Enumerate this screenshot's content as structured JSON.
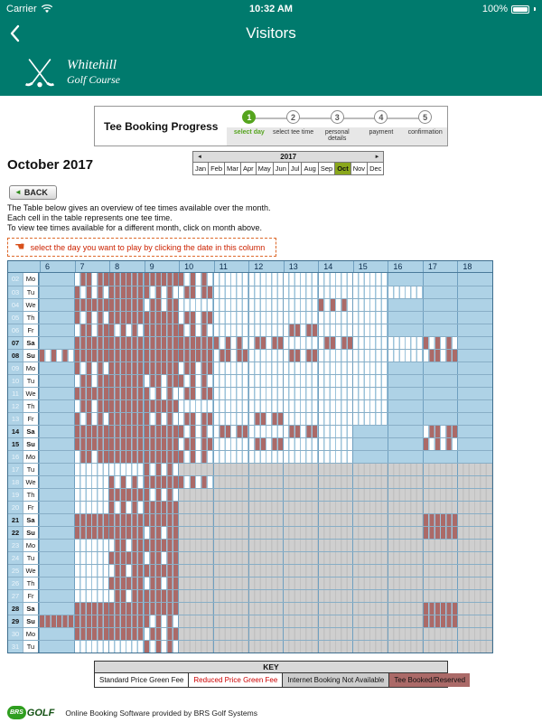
{
  "status_bar": {
    "carrier": "Carrier",
    "time": "10:32 AM",
    "battery": "100%"
  },
  "nav": {
    "title": "Visitors"
  },
  "brand": {
    "line1": "Whitehill",
    "line2": "Golf Course"
  },
  "progress": {
    "title": "Tee Booking Progress",
    "steps": [
      {
        "num": "1",
        "label": "select day",
        "active": true
      },
      {
        "num": "2",
        "label": "select tee time",
        "active": false
      },
      {
        "num": "3",
        "label": "personal details",
        "active": false
      },
      {
        "num": "4",
        "label": "payment",
        "active": false
      },
      {
        "num": "5",
        "label": "confirmation",
        "active": false
      }
    ]
  },
  "month_title": "October 2017",
  "month_selector": {
    "year": "2017",
    "selected": "Oct",
    "months": [
      "Jan",
      "Feb",
      "Mar",
      "Apr",
      "May",
      "Jun",
      "Jul",
      "Aug",
      "Sep",
      "Oct",
      "Nov",
      "Dec"
    ]
  },
  "back_button": {
    "label": "BACK"
  },
  "intro_lines": [
    "The Table below gives an overview of tee times available over the month.",
    "Each cell in the table represents one tee time.",
    "To view tee times available for a different month, click on month above."
  ],
  "hint": {
    "icon": "pointing-left-hand",
    "text": "select the day you want to play by clicking the date in this column"
  },
  "icons": {
    "pointing_hand": "☚",
    "back_triangle": "◄",
    "prev_arrow": "◄",
    "next_arrow": "►"
  },
  "grid": {
    "hours": [
      "6",
      "7",
      "8",
      "9",
      "10",
      "11",
      "12",
      "13",
      "14",
      "15",
      "16",
      "17",
      "18"
    ],
    "slots_per_hour": 6,
    "cell_states": {
      "n": "no tee times",
      "a": "available",
      "b": "booked",
      "m": "partially booked",
      "g": "internet booking not available"
    },
    "days": [
      {
        "date": "02",
        "dow": "Mo",
        "weekend": false,
        "pattern": "nmbbmaaaaannn"
      },
      {
        "date": "03",
        "dow": "Tu",
        "weekend": false,
        "pattern": "nmbmmaaaaaann"
      },
      {
        "date": "04",
        "dow": "We",
        "weekend": false,
        "pattern": "nbbmaaaamannn"
      },
      {
        "date": "05",
        "dow": "Th",
        "weekend": false,
        "pattern": "nmbbmaaaaannn"
      },
      {
        "date": "06",
        "dow": "Fr",
        "weekend": false,
        "pattern": "nmmbmaamaannn"
      },
      {
        "date": "07",
        "dow": "Sa",
        "weekend": true,
        "pattern": "nbbbbmmamaamn"
      },
      {
        "date": "08",
        "dow": "Su",
        "weekend": true,
        "pattern": "mbbbbmamaaamn"
      },
      {
        "date": "09",
        "dow": "Mo",
        "weekend": false,
        "pattern": "nmbbmaaaaannn"
      },
      {
        "date": "10",
        "dow": "Tu",
        "weekend": false,
        "pattern": "nmbmmaaaaannn"
      },
      {
        "date": "11",
        "dow": "We",
        "weekend": false,
        "pattern": "nbbmmaaaaannn"
      },
      {
        "date": "12",
        "dow": "Th",
        "weekend": false,
        "pattern": "nmbbaaaaaannn"
      },
      {
        "date": "13",
        "dow": "Fr",
        "weekend": false,
        "pattern": "nmbmmamaaannn"
      },
      {
        "date": "14",
        "dow": "Sa",
        "weekend": true,
        "pattern": "nbbbmmamannmn"
      },
      {
        "date": "15",
        "dow": "Su",
        "weekend": true,
        "pattern": "nbbbmamaannmn"
      },
      {
        "date": "16",
        "dow": "Mo",
        "weekend": false,
        "pattern": "nmbbmaaaannnn"
      },
      {
        "date": "17",
        "dow": "Tu",
        "weekend": false,
        "pattern": "naamggggggggg"
      },
      {
        "date": "18",
        "dow": "We",
        "weekend": false,
        "pattern": "nambmgggggggg"
      },
      {
        "date": "19",
        "dow": "Th",
        "weekend": false,
        "pattern": "nabmggggggggg"
      },
      {
        "date": "20",
        "dow": "Fr",
        "weekend": false,
        "pattern": "nambggggggggg"
      },
      {
        "date": "21",
        "dow": "Sa",
        "weekend": true,
        "pattern": "nbbbgggggggbg"
      },
      {
        "date": "22",
        "dow": "Su",
        "weekend": true,
        "pattern": "nbbmgggggggbg"
      },
      {
        "date": "23",
        "dow": "Mo",
        "weekend": false,
        "pattern": "nambggggggggg"
      },
      {
        "date": "24",
        "dow": "Tu",
        "weekend": false,
        "pattern": "nabmggggggggg"
      },
      {
        "date": "25",
        "dow": "We",
        "weekend": false,
        "pattern": "nambggggggggg"
      },
      {
        "date": "26",
        "dow": "Th",
        "weekend": false,
        "pattern": "nabmggggggggg"
      },
      {
        "date": "27",
        "dow": "Fr",
        "weekend": false,
        "pattern": "nambggggggggg"
      },
      {
        "date": "28",
        "dow": "Sa",
        "weekend": true,
        "pattern": "nbbbgggggggbg"
      },
      {
        "date": "29",
        "dow": "Su",
        "weekend": true,
        "pattern": "bbbmgggggggbg"
      },
      {
        "date": "30",
        "dow": "Mo",
        "weekend": false,
        "pattern": "nbbmggggggggg"
      },
      {
        "date": "31",
        "dow": "Tu",
        "weekend": false,
        "pattern": "naamggggggggg"
      }
    ]
  },
  "key": {
    "title": "KEY",
    "items": [
      {
        "label": "Standard Price Green Fee",
        "style": "standard"
      },
      {
        "label": "Reduced Price Green Fee",
        "style": "reduced"
      },
      {
        "label": "Internet Booking Not Available",
        "style": "na"
      },
      {
        "label": "Tee Booked/Reserved",
        "style": "booked"
      }
    ]
  },
  "footer": {
    "logo_brs": "BRS",
    "logo_golf": "GOLF",
    "provider": "Online Booking Software provided by BRS Golf Systems"
  },
  "colors": {
    "teal": "#007a6d",
    "step_green": "#55a41e",
    "selected_month": "#8aa71c",
    "booked": "#ab6a68",
    "unavailable_gray": "#cdcdcd",
    "grid_bg": "#aed2e6",
    "hint_red": "#cc2200"
  }
}
